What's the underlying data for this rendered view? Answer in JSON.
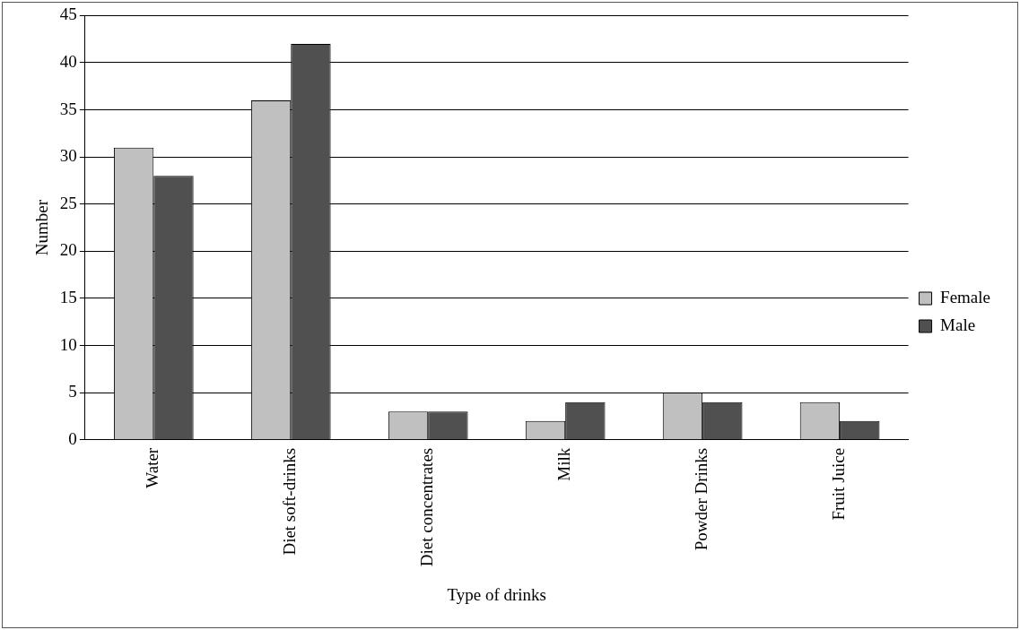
{
  "chart_data": {
    "type": "bar",
    "xlabel": "Type of drinks",
    "ylabel": "Number",
    "categories": [
      "Water",
      "Diet soft-drinks",
      "Diet concentrates",
      "Milk",
      "Powder Drinks",
      "Fruit Juice"
    ],
    "series": [
      {
        "name": "Female",
        "color": "#c0c0c0",
        "values": [
          31,
          36,
          3,
          2,
          5,
          4
        ]
      },
      {
        "name": "Male",
        "color": "#505050",
        "values": [
          28,
          42,
          3,
          4,
          4,
          2
        ]
      }
    ],
    "ylim": [
      0,
      45
    ],
    "yticks": [
      0,
      5,
      10,
      15,
      20,
      25,
      30,
      35,
      40,
      45
    ],
    "grid": "y",
    "legend": "right"
  }
}
